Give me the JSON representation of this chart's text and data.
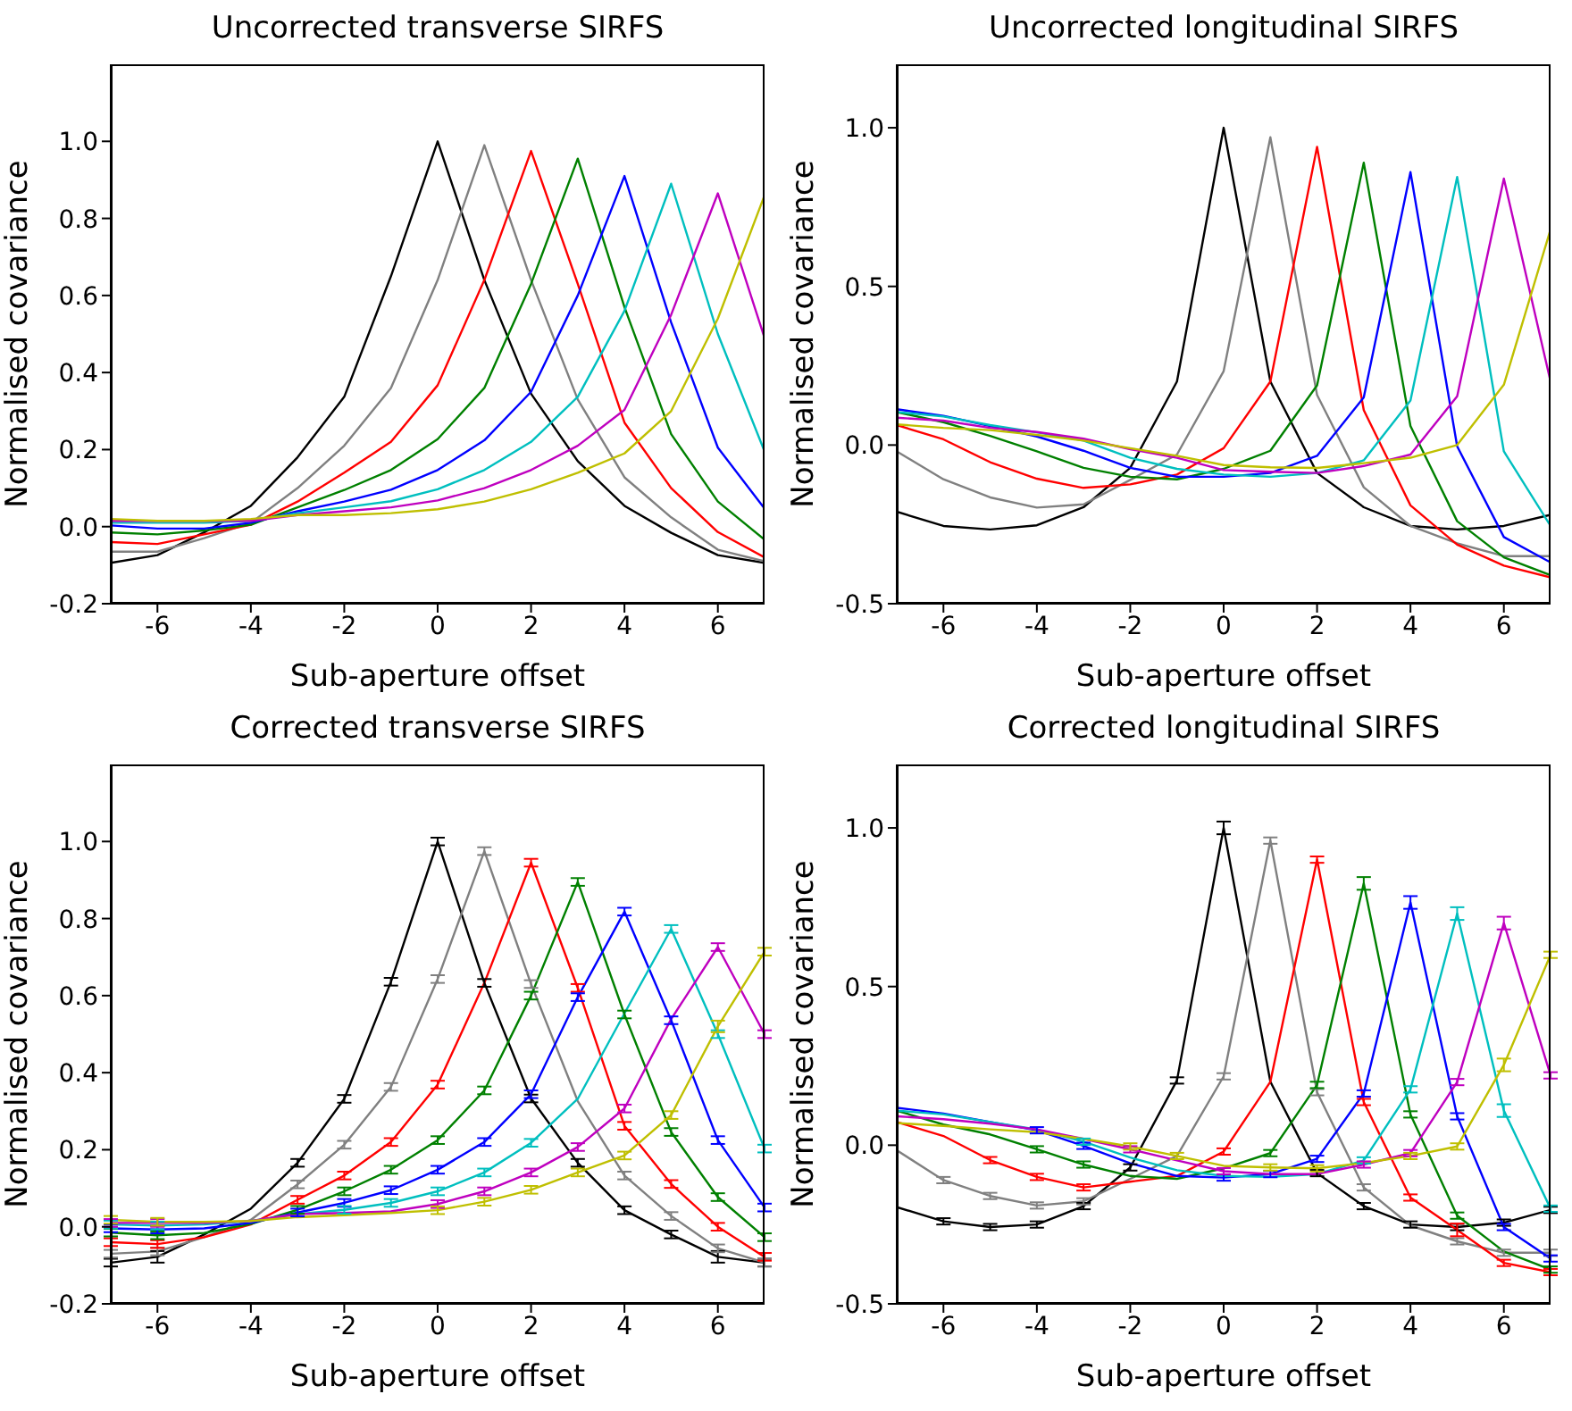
{
  "chart_data": [
    {
      "type": "line",
      "title": "Uncorrected transverse SIRFS",
      "xlabel": "Sub-aperture offset",
      "ylabel": "Normalised covariance",
      "x": [
        -7,
        -6,
        -5,
        -4,
        -3,
        -2,
        -1,
        0,
        1,
        2,
        3,
        4,
        5,
        6,
        7
      ],
      "xlim": [
        -7,
        7
      ],
      "xticks": [
        -6,
        -4,
        -2,
        0,
        2,
        4,
        6
      ],
      "ylim": [
        -0.2,
        1.2
      ],
      "yticks": [
        {
          "value": -0.2,
          "label": "-0.2"
        },
        {
          "value": 0,
          "label": "0.0"
        },
        {
          "value": 0.2,
          "label": "0.2"
        },
        {
          "value": 0.4,
          "label": "0.4"
        },
        {
          "value": 0.6,
          "label": "0.6"
        },
        {
          "value": 0.8,
          "label": "0.8"
        },
        {
          "value": 1,
          "label": "1.0"
        }
      ],
      "series": [
        {
          "color": "#000000",
          "values": [
            -0.094,
            -0.074,
            -0.015,
            0.054,
            0.18,
            0.337,
            0.65,
            1.0,
            0.64,
            0.345,
            0.17,
            0.054,
            -0.016,
            -0.074,
            -0.094
          ]
        },
        {
          "color": "#808080",
          "values": [
            -0.065,
            -0.065,
            -0.03,
            0.01,
            0.1,
            0.21,
            0.36,
            0.64,
            0.99,
            0.64,
            0.33,
            0.128,
            0.024,
            -0.06,
            -0.09
          ]
        },
        {
          "color": "#ff0000",
          "values": [
            -0.04,
            -0.045,
            -0.02,
            0.005,
            0.065,
            0.14,
            0.22,
            0.367,
            0.64,
            0.975,
            0.63,
            0.27,
            0.1,
            -0.014,
            -0.08
          ]
        },
        {
          "color": "#008000",
          "values": [
            -0.015,
            -0.02,
            -0.01,
            0.005,
            0.05,
            0.095,
            0.147,
            0.227,
            0.36,
            0.63,
            0.955,
            0.57,
            0.24,
            0.065,
            -0.034
          ]
        },
        {
          "color": "#0000ff",
          "values": [
            0.003,
            -0.005,
            -0.005,
            0.01,
            0.04,
            0.065,
            0.096,
            0.147,
            0.224,
            0.35,
            0.6,
            0.91,
            0.53,
            0.205,
            0.047
          ]
        },
        {
          "color": "#00bfbf",
          "values": [
            0.01,
            0.01,
            0.01,
            0.015,
            0.035,
            0.05,
            0.066,
            0.097,
            0.147,
            0.22,
            0.337,
            0.56,
            0.89,
            0.5,
            0.195
          ]
        },
        {
          "color": "#bf00bf",
          "values": [
            0.015,
            0.015,
            0.015,
            0.015,
            0.03,
            0.04,
            0.05,
            0.068,
            0.1,
            0.147,
            0.21,
            0.303,
            0.55,
            0.865,
            0.49
          ]
        },
        {
          "color": "#bfbf00",
          "values": [
            0.02,
            0.015,
            0.015,
            0.02,
            0.03,
            0.03,
            0.035,
            0.045,
            0.065,
            0.097,
            0.14,
            0.19,
            0.3,
            0.54,
            0.86
          ]
        }
      ]
    },
    {
      "type": "line",
      "title": "Uncorrected longitudinal SIRFS",
      "xlabel": "Sub-aperture offset",
      "ylabel": "Normalised covariance",
      "x": [
        -7,
        -6,
        -5,
        -4,
        -3,
        -2,
        -1,
        0,
        1,
        2,
        3,
        4,
        5,
        6,
        7
      ],
      "xlim": [
        -7,
        7
      ],
      "xticks": [
        -6,
        -4,
        -2,
        0,
        2,
        4,
        6
      ],
      "ylim": [
        -0.5,
        1.2
      ],
      "yticks": [
        {
          "value": -0.5,
          "label": "-0.5"
        },
        {
          "value": 0,
          "label": "0.0"
        },
        {
          "value": 0.5,
          "label": "0.5"
        },
        {
          "value": 1,
          "label": "1.0"
        }
      ],
      "series": [
        {
          "color": "#000000",
          "values": [
            -0.21,
            -0.255,
            -0.266,
            -0.253,
            -0.196,
            -0.072,
            0.2,
            1.0,
            0.2,
            -0.088,
            -0.196,
            -0.255,
            -0.266,
            -0.255,
            -0.22
          ]
        },
        {
          "color": "#808080",
          "values": [
            -0.02,
            -0.108,
            -0.165,
            -0.197,
            -0.187,
            -0.11,
            -0.03,
            0.233,
            0.97,
            0.158,
            -0.133,
            -0.255,
            -0.31,
            -0.35,
            -0.35
          ]
        },
        {
          "color": "#ff0000",
          "values": [
            0.063,
            0.018,
            -0.054,
            -0.106,
            -0.135,
            -0.124,
            -0.093,
            -0.01,
            0.2,
            0.94,
            0.11,
            -0.19,
            -0.314,
            -0.38,
            -0.417
          ]
        },
        {
          "color": "#008000",
          "values": [
            0.104,
            0.072,
            0.029,
            -0.02,
            -0.072,
            -0.1,
            -0.108,
            -0.075,
            -0.018,
            0.188,
            0.89,
            0.06,
            -0.24,
            -0.354,
            -0.41
          ]
        },
        {
          "color": "#0000ff",
          "values": [
            0.113,
            0.092,
            0.06,
            0.027,
            -0.018,
            -0.072,
            -0.1,
            -0.1,
            -0.088,
            -0.034,
            0.15,
            0.86,
            -0.004,
            -0.29,
            -0.37
          ]
        },
        {
          "color": "#00bfbf",
          "values": [
            0.104,
            0.09,
            0.063,
            0.04,
            0.014,
            -0.04,
            -0.075,
            -0.093,
            -0.1,
            -0.088,
            -0.048,
            0.14,
            0.845,
            -0.02,
            -0.255
          ]
        },
        {
          "color": "#bf00bf",
          "values": [
            0.086,
            0.077,
            0.054,
            0.041,
            0.02,
            -0.013,
            -0.04,
            -0.079,
            -0.084,
            -0.088,
            -0.066,
            -0.03,
            0.154,
            0.84,
            0.2
          ]
        },
        {
          "color": "#bfbf00",
          "values": [
            0.065,
            0.054,
            0.047,
            0.032,
            0.014,
            -0.01,
            -0.034,
            -0.063,
            -0.07,
            -0.072,
            -0.057,
            -0.04,
            0.0,
            0.19,
            0.68
          ]
        }
      ]
    },
    {
      "type": "line",
      "title": "Corrected transverse SIRFS",
      "xlabel": "Sub-aperture offset",
      "ylabel": "Normalised covariance",
      "x": [
        -7,
        -6,
        -5,
        -4,
        -3,
        -2,
        -1,
        0,
        1,
        2,
        3,
        4,
        5,
        6,
        7
      ],
      "xlim": [
        -7,
        7
      ],
      "xticks": [
        -6,
        -4,
        -2,
        0,
        2,
        4,
        6
      ],
      "ylim": [
        -0.2,
        1.2
      ],
      "yticks": [
        {
          "value": -0.2,
          "label": "-0.2"
        },
        {
          "value": 0,
          "label": "0.0"
        },
        {
          "value": 0.2,
          "label": "0.2"
        },
        {
          "value": 0.4,
          "label": "0.4"
        },
        {
          "value": 0.6,
          "label": "0.6"
        },
        {
          "value": 0.8,
          "label": "0.8"
        },
        {
          "value": 1,
          "label": "1.0"
        }
      ],
      "series": [
        {
          "color": "#000000",
          "values": [
            -0.093,
            -0.078,
            -0.02,
            0.047,
            0.166,
            0.332,
            0.636,
            1.0,
            0.633,
            0.333,
            0.166,
            0.043,
            -0.02,
            -0.078,
            -0.093
          ],
          "errors": [
            0.01,
            0.015,
            null,
            null,
            0.01,
            0.01,
            0.01,
            0.01,
            0.01,
            0.01,
            0.01,
            0.01,
            0.01,
            0.015,
            0.01
          ]
        },
        {
          "color": "#808080",
          "values": [
            -0.07,
            -0.064,
            -0.027,
            0.018,
            0.11,
            0.213,
            0.363,
            0.643,
            0.975,
            0.63,
            0.326,
            0.133,
            0.028,
            -0.056,
            -0.093
          ],
          "errors": [
            0.01,
            0.01,
            null,
            null,
            0.01,
            0.01,
            0.01,
            0.01,
            0.01,
            0.01,
            null,
            0.01,
            0.01,
            0.01,
            0.01
          ]
        },
        {
          "color": "#ff0000",
          "values": [
            -0.04,
            -0.045,
            -0.027,
            0.006,
            0.07,
            0.133,
            0.22,
            0.369,
            0.633,
            0.945,
            0.62,
            0.262,
            0.111,
            0.0,
            -0.078
          ],
          "errors": [
            0.01,
            0.01,
            null,
            null,
            0.01,
            0.01,
            0.01,
            0.01,
            null,
            0.01,
            0.01,
            0.01,
            0.01,
            0.01,
            0.01
          ]
        },
        {
          "color": "#008000",
          "values": [
            -0.015,
            -0.022,
            -0.016,
            0.007,
            0.044,
            0.092,
            0.148,
            0.225,
            0.354,
            0.6,
            0.895,
            0.551,
            0.246,
            0.077,
            -0.027
          ],
          "errors": [
            0.01,
            0.01,
            null,
            null,
            0.01,
            0.01,
            0.01,
            0.01,
            0.01,
            0.01,
            0.01,
            0.01,
            0.01,
            0.01,
            0.01
          ]
        },
        {
          "color": "#0000ff",
          "values": [
            -0.004,
            -0.007,
            -0.004,
            0.01,
            0.037,
            0.062,
            0.095,
            0.148,
            0.22,
            0.344,
            0.596,
            0.818,
            0.536,
            0.225,
            0.05
          ],
          "errors": [
            0.01,
            0.01,
            null,
            null,
            0.01,
            0.01,
            0.01,
            0.01,
            0.01,
            0.01,
            0.01,
            0.01,
            0.01,
            0.01,
            0.01
          ]
        },
        {
          "color": "#00bfbf",
          "values": [
            0.006,
            0.003,
            0.006,
            0.015,
            0.033,
            0.044,
            0.062,
            0.092,
            0.141,
            0.218,
            0.332,
            0.554,
            0.773,
            0.5,
            0.203
          ],
          "errors": [
            0.01,
            0.01,
            null,
            null,
            null,
            0.01,
            0.01,
            0.01,
            0.01,
            0.01,
            null,
            null,
            0.01,
            0.01,
            0.01
          ]
        },
        {
          "color": "#bf00bf",
          "values": [
            0.01,
            0.01,
            0.01,
            0.015,
            0.033,
            0.036,
            0.04,
            0.059,
            0.092,
            0.141,
            0.207,
            0.307,
            0.539,
            0.726,
            0.5
          ],
          "errors": [
            0.01,
            0.01,
            null,
            null,
            null,
            null,
            null,
            0.01,
            0.01,
            0.01,
            0.01,
            0.01,
            null,
            0.01,
            0.01
          ]
        },
        {
          "color": "#bfbf00",
          "values": [
            0.018,
            0.013,
            0.013,
            0.015,
            0.025,
            0.03,
            0.036,
            0.043,
            0.065,
            0.096,
            0.141,
            0.185,
            0.29,
            0.52,
            0.714
          ],
          "errors": [
            0.01,
            0.01,
            null,
            null,
            null,
            null,
            null,
            0.01,
            0.01,
            0.01,
            0.01,
            0.01,
            0.01,
            0.015,
            0.01
          ]
        }
      ]
    },
    {
      "type": "line",
      "title": "Corrected longitudinal SIRFS",
      "xlabel": "Sub-aperture offset",
      "ylabel": "Normalised covariance",
      "x": [
        -7,
        -6,
        -5,
        -4,
        -3,
        -2,
        -1,
        0,
        1,
        2,
        3,
        4,
        5,
        6,
        7
      ],
      "xlim": [
        -7,
        7
      ],
      "xticks": [
        -6,
        -4,
        -2,
        0,
        2,
        4,
        6
      ],
      "ylim": [
        -0.5,
        1.2
      ],
      "yticks": [
        {
          "value": -0.5,
          "label": "-0.5"
        },
        {
          "value": 0,
          "label": "0.0"
        },
        {
          "value": 0.5,
          "label": "0.5"
        },
        {
          "value": 1,
          "label": "1.0"
        }
      ],
      "series": [
        {
          "color": "#000000",
          "values": [
            -0.195,
            -0.24,
            -0.258,
            -0.25,
            -0.192,
            -0.07,
            0.204,
            1.0,
            0.2,
            -0.088,
            -0.192,
            -0.25,
            -0.258,
            -0.244,
            -0.204
          ],
          "errors": [
            null,
            0.01,
            0.01,
            0.01,
            0.01,
            0.01,
            0.01,
            0.02,
            null,
            0.01,
            0.01,
            0.01,
            0.01,
            0.01,
            0.01
          ]
        },
        {
          "color": "#808080",
          "values": [
            -0.016,
            -0.11,
            -0.16,
            -0.19,
            -0.177,
            -0.106,
            -0.034,
            0.217,
            0.96,
            0.167,
            -0.133,
            -0.253,
            -0.303,
            -0.339,
            -0.339
          ],
          "errors": [
            null,
            0.01,
            0.01,
            0.01,
            0.01,
            null,
            null,
            0.01,
            0.01,
            0.01,
            0.01,
            null,
            0.01,
            0.01,
            0.01
          ]
        },
        {
          "color": "#ff0000",
          "values": [
            0.073,
            0.029,
            -0.047,
            -0.1,
            -0.133,
            -0.115,
            -0.097,
            -0.02,
            0.2,
            0.9,
            0.136,
            -0.165,
            -0.267,
            -0.371,
            -0.4
          ],
          "errors": [
            null,
            null,
            0.01,
            0.01,
            0.01,
            null,
            null,
            0.01,
            null,
            0.01,
            0.01,
            0.01,
            0.02,
            0.01,
            0.01
          ]
        },
        {
          "color": "#008000",
          "values": [
            0.109,
            0.065,
            0.034,
            -0.013,
            -0.061,
            -0.097,
            -0.106,
            -0.073,
            -0.025,
            0.19,
            0.825,
            0.097,
            -0.222,
            -0.335,
            -0.392
          ],
          "errors": [
            null,
            null,
            null,
            0.01,
            0.01,
            null,
            null,
            null,
            0.01,
            0.01,
            0.02,
            0.01,
            0.01,
            null,
            0.01
          ]
        },
        {
          "color": "#0000ff",
          "values": [
            0.118,
            0.1,
            0.073,
            0.047,
            -0.002,
            -0.057,
            -0.097,
            -0.102,
            -0.091,
            -0.043,
            0.163,
            0.765,
            0.091,
            -0.258,
            -0.357
          ],
          "errors": [
            null,
            null,
            null,
            0.01,
            0.01,
            null,
            null,
            0.01,
            0.01,
            0.01,
            0.01,
            0.02,
            0.01,
            0.01,
            0.01
          ]
        },
        {
          "color": "#00bfbf",
          "values": [
            0.109,
            0.097,
            0.073,
            0.05,
            0.011,
            -0.039,
            -0.079,
            -0.097,
            -0.1,
            -0.091,
            -0.048,
            0.176,
            0.73,
            0.109,
            -0.2
          ],
          "errors": [
            null,
            null,
            null,
            null,
            0.01,
            null,
            null,
            null,
            null,
            null,
            0.01,
            0.01,
            0.02,
            0.02,
            0.01
          ]
        },
        {
          "color": "#bf00bf",
          "values": [
            0.091,
            0.082,
            0.068,
            0.05,
            0.02,
            -0.013,
            -0.048,
            -0.082,
            -0.091,
            -0.091,
            -0.061,
            -0.025,
            0.199,
            0.7,
            0.22
          ],
          "errors": [
            null,
            null,
            null,
            null,
            null,
            0.01,
            null,
            0.01,
            null,
            null,
            0.01,
            0.01,
            0.01,
            0.02,
            0.01
          ]
        },
        {
          "color": "#bfbf00",
          "values": [
            0.07,
            0.061,
            0.05,
            0.041,
            0.02,
            -0.004,
            -0.034,
            -0.065,
            -0.07,
            -0.073,
            -0.056,
            -0.034,
            -0.004,
            0.253,
            0.6
          ],
          "errors": [
            null,
            null,
            null,
            null,
            null,
            0.01,
            0.01,
            null,
            0.01,
            0.01,
            null,
            0.01,
            0.01,
            0.02,
            0.01
          ]
        }
      ]
    }
  ]
}
